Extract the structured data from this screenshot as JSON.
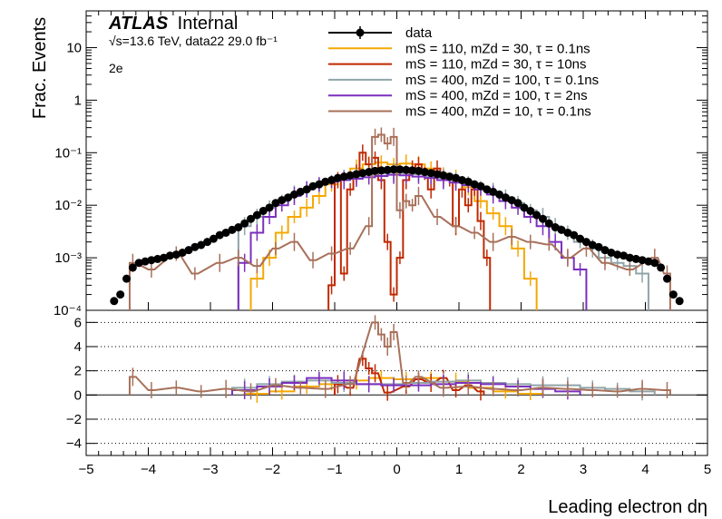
{
  "header": {
    "experiment": "ATLAS",
    "status": "Internal",
    "energy_line": "√s=13.6 TeV, data22 29.0 fb⁻¹",
    "channel": "2e"
  },
  "legend": {
    "entries": [
      {
        "label": "data",
        "kind": "marker",
        "color": "#000000"
      },
      {
        "label": "mS = 110, mZd = 30, τ = 0.1ns",
        "kind": "line",
        "color": "#F5A800"
      },
      {
        "label": "mS = 110, mZd = 30, τ = 10ns",
        "kind": "line",
        "color": "#C02800"
      },
      {
        "label": "mS = 400, mZd = 100, τ = 0.1ns",
        "kind": "line",
        "color": "#8FA4A8"
      },
      {
        "label": "mS = 400, mZd = 100, τ = 2ns",
        "kind": "line",
        "color": "#7B2FBE"
      },
      {
        "label": "mS = 400, mZd = 10, τ = 0.1ns",
        "kind": "line",
        "color": "#A8705A"
      }
    ]
  },
  "chart_data": [
    {
      "type": "line",
      "panel": "main",
      "ylabel": "Frac. Events",
      "yscale": "log",
      "ylim": [
        0.0001,
        50
      ],
      "xlim": [
        -5,
        5
      ],
      "yticks": [
        {
          "v": 0.0001,
          "label": "10⁻⁴"
        },
        {
          "v": 0.001,
          "label": "10⁻³"
        },
        {
          "v": 0.01,
          "label": "10⁻²"
        },
        {
          "v": 0.1,
          "label": "10⁻¹"
        },
        {
          "v": 1,
          "label": "1"
        },
        {
          "v": 10,
          "label": "10"
        }
      ],
      "data_points": {
        "x": [
          -4.55,
          -4.45,
          -4.35,
          -4.25,
          -4.15,
          -4.05,
          -3.95,
          -3.85,
          -3.75,
          -3.65,
          -3.55,
          -3.45,
          -3.35,
          -3.25,
          -3.15,
          -3.05,
          -2.95,
          -2.85,
          -2.75,
          -2.65,
          -2.55,
          -2.45,
          -2.35,
          -2.25,
          -2.15,
          -2.05,
          -1.95,
          -1.85,
          -1.75,
          -1.65,
          -1.55,
          -1.45,
          -1.35,
          -1.25,
          -1.15,
          -1.05,
          -0.95,
          -0.85,
          -0.75,
          -0.65,
          -0.55,
          -0.45,
          -0.35,
          -0.25,
          -0.15,
          -0.05,
          0.05,
          0.15,
          0.25,
          0.35,
          0.45,
          0.55,
          0.65,
          0.75,
          0.85,
          0.95,
          1.05,
          1.15,
          1.25,
          1.35,
          1.45,
          1.55,
          1.65,
          1.75,
          1.85,
          1.95,
          2.05,
          2.15,
          2.25,
          2.35,
          2.45,
          2.55,
          2.65,
          2.75,
          2.85,
          2.95,
          3.05,
          3.15,
          3.25,
          3.35,
          3.45,
          3.55,
          3.65,
          3.75,
          3.85,
          3.95,
          4.05,
          4.15,
          4.25,
          4.35,
          4.45,
          4.55
        ],
        "y": [
          0.00015,
          0.0002,
          0.0004,
          0.00065,
          0.0008,
          0.00085,
          0.0009,
          0.00095,
          0.001,
          0.0011,
          0.00115,
          0.00125,
          0.0014,
          0.0016,
          0.00175,
          0.002,
          0.0023,
          0.0027,
          0.003,
          0.0034,
          0.0038,
          0.0045,
          0.0055,
          0.0065,
          0.0078,
          0.009,
          0.011,
          0.0125,
          0.014,
          0.016,
          0.018,
          0.02,
          0.023,
          0.025,
          0.028,
          0.03,
          0.033,
          0.035,
          0.037,
          0.039,
          0.041,
          0.043,
          0.045,
          0.046,
          0.047,
          0.048,
          0.048,
          0.047,
          0.046,
          0.045,
          0.043,
          0.041,
          0.039,
          0.037,
          0.035,
          0.033,
          0.03,
          0.028,
          0.025,
          0.023,
          0.02,
          0.018,
          0.016,
          0.014,
          0.0125,
          0.011,
          0.009,
          0.0078,
          0.0065,
          0.0055,
          0.0045,
          0.0038,
          0.0034,
          0.003,
          0.0027,
          0.0023,
          0.002,
          0.00175,
          0.0016,
          0.0014,
          0.00125,
          0.00115,
          0.0011,
          0.001,
          0.00095,
          0.0009,
          0.00085,
          0.0008,
          0.00065,
          0.0004,
          0.0002,
          0.00015
        ]
      },
      "series": [
        {
          "color": "#F5A800",
          "x": [
            -2.25,
            -2.05,
            -1.85,
            -1.65,
            -1.45,
            -1.25,
            -1.05,
            -0.85,
            -0.65,
            -0.45,
            -0.25,
            -0.05,
            0.15,
            0.35,
            0.55,
            0.75,
            0.95,
            1.15,
            1.35,
            1.55,
            1.75,
            1.95,
            2.15
          ],
          "y": [
            0.0004,
            0.001,
            0.003,
            0.006,
            0.009,
            0.015,
            0.025,
            0.035,
            0.05,
            0.06,
            0.065,
            0.06,
            0.062,
            0.06,
            0.05,
            0.04,
            0.032,
            0.022,
            0.012,
            0.007,
            0.004,
            0.0015,
            0.0004
          ]
        },
        {
          "color": "#C02800",
          "x": [
            -1.05,
            -0.95,
            -0.85,
            -0.75,
            -0.65,
            -0.55,
            -0.45,
            -0.35,
            -0.25,
            -0.15,
            -0.05,
            0.05,
            0.15,
            0.25,
            0.35,
            0.45,
            0.55,
            0.65,
            0.75,
            0.85,
            0.95,
            1.05,
            1.15,
            1.25,
            1.35,
            1.45
          ],
          "y": [
            0.0003,
            0.03,
            0.0005,
            0.02,
            0.04,
            0.1,
            0.06,
            0.08,
            0.03,
            0.002,
            0.0002,
            0.001,
            0.03,
            0.05,
            0.06,
            0.04,
            0.02,
            0.05,
            0.035,
            0.03,
            0.004,
            0.02,
            0.01,
            0.02,
            0.005,
            0.001
          ]
        },
        {
          "color": "#8FA4A8",
          "x": [
            -2.45,
            -2.25,
            -2.05,
            -1.85,
            -1.65,
            -1.45,
            -1.25,
            -1.05,
            -0.85,
            -0.65,
            -0.45,
            -0.25,
            -0.05,
            0.15,
            0.35,
            0.55,
            0.75,
            0.95,
            1.15,
            1.35,
            1.55,
            1.75,
            1.95,
            2.15,
            2.35,
            2.55,
            2.75,
            2.95,
            3.15,
            3.35,
            3.55,
            3.75,
            3.95
          ],
          "y": [
            0.004,
            0.006,
            0.009,
            0.012,
            0.016,
            0.02,
            0.024,
            0.028,
            0.032,
            0.035,
            0.038,
            0.04,
            0.042,
            0.041,
            0.039,
            0.036,
            0.033,
            0.03,
            0.026,
            0.022,
            0.018,
            0.014,
            0.011,
            0.008,
            0.006,
            0.004,
            0.003,
            0.002,
            0.0015,
            0.001,
            0.0008,
            0.0007,
            0.0005
          ]
        },
        {
          "color": "#7B2FBE",
          "x": [
            -2.45,
            -2.25,
            -2.05,
            -1.85,
            -1.65,
            -1.45,
            -1.25,
            -1.05,
            -0.85,
            -0.65,
            -0.45,
            -0.25,
            -0.05,
            0.15,
            0.35,
            0.55,
            0.75,
            0.95,
            1.15,
            1.35,
            1.55,
            1.75,
            1.95,
            2.15,
            2.35,
            2.55,
            2.75,
            2.95
          ],
          "y": [
            0.0008,
            0.003,
            0.006,
            0.01,
            0.015,
            0.02,
            0.025,
            0.028,
            0.03,
            0.032,
            0.034,
            0.036,
            0.038,
            0.037,
            0.035,
            0.033,
            0.03,
            0.027,
            0.024,
            0.02,
            0.016,
            0.012,
            0.009,
            0.006,
            0.004,
            0.002,
            0.001,
            0.0006
          ]
        },
        {
          "color": "#A8705A",
          "x": [
            -4.25,
            -3.95,
            -3.55,
            -3.25,
            -2.85,
            -2.55,
            -2.25,
            -1.95,
            -1.65,
            -1.35,
            -1.05,
            -0.75,
            -0.45,
            -0.35,
            -0.25,
            -0.15,
            -0.05,
            0.05,
            0.15,
            0.25,
            0.35,
            0.65,
            0.95,
            1.25,
            1.55,
            1.85,
            2.15,
            2.45,
            2.75,
            3.05,
            3.35,
            3.75,
            4.15,
            4.35
          ],
          "y": [
            0.0008,
            0.0006,
            0.0012,
            0.0005,
            0.0008,
            0.001,
            0.0007,
            0.0015,
            0.002,
            0.0009,
            0.0012,
            0.0015,
            0.004,
            0.2,
            0.22,
            0.15,
            0.2,
            0.008,
            0.012,
            0.01,
            0.015,
            0.006,
            0.004,
            0.003,
            0.002,
            0.0025,
            0.002,
            0.0018,
            0.001,
            0.0015,
            0.0008,
            0.0006,
            0.001,
            0.0005
          ]
        }
      ]
    },
    {
      "type": "line",
      "panel": "ratio",
      "xlabel": "Leading electron dη",
      "ylim": [
        -5,
        7
      ],
      "xlim": [
        -5,
        5
      ],
      "yticks": [
        -4,
        -2,
        0,
        2,
        4,
        6
      ],
      "xticks": [
        -5,
        -4,
        -3,
        -2,
        -1,
        0,
        1,
        2,
        3,
        4,
        5
      ],
      "grid": true,
      "series": [
        {
          "color": "#F5A800",
          "x": [
            -2.25,
            -1.85,
            -1.45,
            -1.05,
            -0.65,
            -0.25,
            0.15,
            0.55,
            0.95,
            1.35,
            1.75,
            2.15
          ],
          "y": [
            0.1,
            0.3,
            0.7,
            0.9,
            1.2,
            1.4,
            1.3,
            1.4,
            1.1,
            0.6,
            0.3,
            0.1
          ]
        },
        {
          "color": "#C02800",
          "x": [
            -0.95,
            -0.75,
            -0.55,
            -0.45,
            -0.35,
            -0.15,
            0.15,
            0.35,
            0.55,
            0.75,
            0.95,
            1.15,
            1.35
          ],
          "y": [
            0.9,
            0.6,
            3.0,
            2.2,
            1.8,
            0.2,
            0.7,
            1.3,
            1.0,
            1.4,
            0.4,
            0.8,
            0.3
          ]
        },
        {
          "color": "#8FA4A8",
          "x": [
            -2.45,
            -2.05,
            -1.65,
            -1.25,
            -0.85,
            -0.45,
            -0.05,
            0.35,
            0.75,
            1.15,
            1.55,
            1.95,
            2.35,
            2.75,
            3.15,
            3.55,
            3.95
          ],
          "y": [
            0.6,
            0.9,
            1.1,
            1.2,
            1.0,
            0.9,
            0.9,
            1.0,
            1.1,
            1.2,
            1.0,
            0.9,
            0.8,
            0.8,
            0.6,
            0.5,
            0.3
          ]
        },
        {
          "color": "#7B2FBE",
          "x": [
            -2.45,
            -2.05,
            -1.65,
            -1.25,
            -0.85,
            -0.45,
            -0.05,
            0.35,
            0.75,
            1.15,
            1.55,
            1.95,
            2.35,
            2.75
          ],
          "y": [
            0.4,
            0.7,
            1.0,
            1.4,
            1.2,
            0.9,
            0.8,
            0.8,
            0.9,
            1.0,
            0.9,
            0.7,
            0.5,
            0.3
          ]
        },
        {
          "color": "#A8705A",
          "x": [
            -4.25,
            -3.95,
            -3.55,
            -3.15,
            -2.75,
            -2.35,
            -1.95,
            -1.55,
            -1.15,
            -0.75,
            -0.35,
            -0.25,
            -0.15,
            -0.05,
            0.15,
            0.35,
            0.75,
            1.15,
            1.55,
            1.95,
            2.35,
            2.75,
            3.15,
            3.55,
            3.95,
            4.35
          ],
          "y": [
            1.5,
            0.4,
            0.6,
            0.3,
            0.5,
            0.3,
            0.8,
            0.6,
            0.5,
            0.9,
            6.0,
            5.0,
            4.0,
            5.2,
            1.0,
            1.5,
            0.6,
            0.7,
            0.5,
            0.4,
            0.6,
            0.5,
            0.4,
            0.3,
            0.5,
            0.4
          ]
        }
      ]
    }
  ]
}
